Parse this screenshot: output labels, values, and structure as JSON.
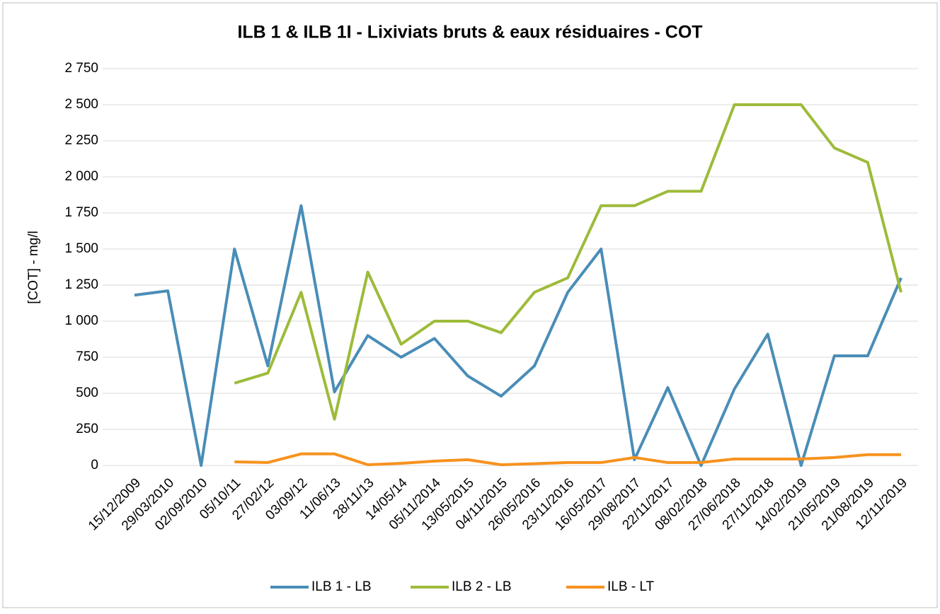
{
  "chart_data": {
    "type": "line",
    "title": "ILB 1 & ILB 1I - Lixiviats bruts & eaux résiduaires - COT",
    "y_label": "[COT] - mg/l",
    "categories": [
      "15/12/2009",
      "29/03/2010",
      "02/09/2010",
      "05/10/11",
      "27/02/12",
      "03/09/12",
      "11/06/13",
      "28/11/13",
      "14/05/14",
      "05/11/2014",
      "13/05/2015",
      "04/11/2015",
      "26/05/2016",
      "23/11/2016",
      "16/05/2017",
      "29/08/2017",
      "22/11/2017",
      "08/02/2018",
      "27/06/2018",
      "27/11/2018",
      "14/02/2019",
      "21/05/2019",
      "21/08/2019",
      "12/11/2019"
    ],
    "series": [
      {
        "name": "ILB 1 - LB",
        "color": "#4a8db7",
        "values": [
          1180,
          1210,
          0,
          1500,
          690,
          1800,
          510,
          900,
          750,
          880,
          620,
          480,
          690,
          1200,
          1500,
          40,
          540,
          0,
          530,
          910,
          0,
          760,
          760,
          1300
        ]
      },
      {
        "name": "ILB 2 - LB",
        "color": "#9dbb3a",
        "values": [
          null,
          null,
          null,
          570,
          640,
          1200,
          320,
          1340,
          840,
          1000,
          1000,
          920,
          1200,
          1300,
          1800,
          1800,
          1900,
          1900,
          2500,
          2500,
          2500,
          2200,
          2100,
          1200
        ]
      },
      {
        "name": "ILB - LT",
        "color": "#f7921e",
        "values": [
          null,
          null,
          null,
          25,
          20,
          80,
          80,
          5,
          15,
          30,
          40,
          5,
          12,
          20,
          20,
          55,
          20,
          20,
          45,
          45,
          45,
          55,
          75,
          75
        ]
      }
    ],
    "ylim": [
      0,
      2750
    ],
    "yticks": [
      0,
      250,
      500,
      750,
      {
        "value": 1000,
        "label": "1 000"
      },
      {
        "value": 1250,
        "label": "1 250"
      },
      {
        "value": 1500,
        "label": "1 500"
      },
      {
        "value": 1750,
        "label": "1 750"
      },
      {
        "value": 2000,
        "label": "2 000"
      },
      {
        "value": 2250,
        "label": "2 250"
      },
      {
        "value": 2500,
        "label": "2 500"
      },
      {
        "value": 2750,
        "label": "2 750"
      }
    ],
    "grid": true,
    "legend": "bottom"
  }
}
